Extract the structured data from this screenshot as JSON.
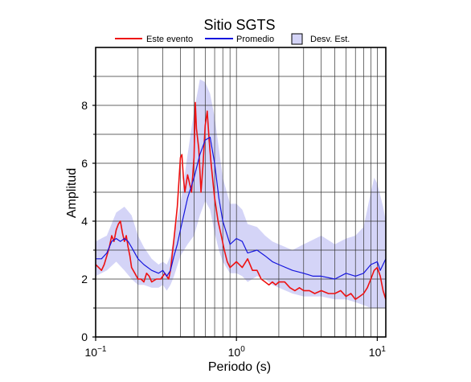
{
  "chart_data": {
    "type": "line",
    "title": "Sitio SGTS",
    "xlabel": "Periodo (s)",
    "ylabel": "Amplitud",
    "xscale": "log",
    "xlim": [
      0.1,
      11.5
    ],
    "ylim": [
      0,
      10
    ],
    "grid": true,
    "legend_position": "top",
    "x_ticks": [
      {
        "value": 0.1,
        "base": "10",
        "exp": "−1"
      },
      {
        "value": 1,
        "base": "10",
        "exp": "0"
      },
      {
        "value": 10,
        "base": "10",
        "exp": "1"
      }
    ],
    "y_ticks": [
      0,
      2,
      4,
      6,
      8
    ],
    "legend": [
      {
        "label": "Este evento",
        "kind": "line",
        "color": "#ee1111"
      },
      {
        "label": "Promedio",
        "kind": "line",
        "color": "#1515dd"
      },
      {
        "label": "Desv. Est.",
        "kind": "band",
        "color": "#d4d4f7"
      }
    ],
    "colors": {
      "event": "#ee1111",
      "mean": "#1515dd",
      "band": "#d4d4f7"
    },
    "series": [
      {
        "name": "Este evento",
        "color": "#ee1111",
        "points": [
          [
            0.1,
            2.5
          ],
          [
            0.105,
            2.4
          ],
          [
            0.11,
            2.3
          ],
          [
            0.115,
            2.5
          ],
          [
            0.12,
            2.8
          ],
          [
            0.125,
            3.1
          ],
          [
            0.13,
            3.5
          ],
          [
            0.135,
            3.3
          ],
          [
            0.14,
            3.7
          ],
          [
            0.145,
            3.9
          ],
          [
            0.15,
            4.0
          ],
          [
            0.155,
            3.6
          ],
          [
            0.16,
            3.3
          ],
          [
            0.165,
            3.5
          ],
          [
            0.17,
            3.1
          ],
          [
            0.175,
            2.8
          ],
          [
            0.18,
            2.4
          ],
          [
            0.19,
            2.2
          ],
          [
            0.2,
            2.0
          ],
          [
            0.21,
            2.0
          ],
          [
            0.22,
            1.9
          ],
          [
            0.23,
            2.2
          ],
          [
            0.24,
            2.1
          ],
          [
            0.25,
            1.9
          ],
          [
            0.27,
            2.0
          ],
          [
            0.29,
            2.0
          ],
          [
            0.31,
            2.2
          ],
          [
            0.33,
            2.0
          ],
          [
            0.34,
            2.3
          ],
          [
            0.36,
            3.4
          ],
          [
            0.38,
            4.5
          ],
          [
            0.4,
            6.2
          ],
          [
            0.41,
            6.3
          ],
          [
            0.42,
            5.5
          ],
          [
            0.43,
            5.0
          ],
          [
            0.45,
            5.6
          ],
          [
            0.47,
            5.2
          ],
          [
            0.48,
            5.0
          ],
          [
            0.5,
            6.2
          ],
          [
            0.51,
            8.1
          ],
          [
            0.52,
            7.2
          ],
          [
            0.54,
            6.5
          ],
          [
            0.56,
            5.0
          ],
          [
            0.58,
            6.0
          ],
          [
            0.6,
            7.3
          ],
          [
            0.62,
            7.8
          ],
          [
            0.64,
            6.8
          ],
          [
            0.66,
            6.0
          ],
          [
            0.7,
            4.8
          ],
          [
            0.74,
            4.0
          ],
          [
            0.78,
            3.5
          ],
          [
            0.82,
            3.0
          ],
          [
            0.86,
            2.6
          ],
          [
            0.9,
            2.4
          ],
          [
            0.95,
            2.5
          ],
          [
            1.0,
            2.6
          ],
          [
            1.1,
            2.4
          ],
          [
            1.2,
            2.7
          ],
          [
            1.3,
            2.3
          ],
          [
            1.4,
            2.3
          ],
          [
            1.5,
            2.0
          ],
          [
            1.6,
            1.9
          ],
          [
            1.7,
            1.8
          ],
          [
            1.8,
            1.9
          ],
          [
            1.9,
            1.8
          ],
          [
            2.0,
            1.9
          ],
          [
            2.2,
            1.9
          ],
          [
            2.4,
            1.7
          ],
          [
            2.6,
            1.6
          ],
          [
            2.8,
            1.7
          ],
          [
            3.0,
            1.6
          ],
          [
            3.3,
            1.6
          ],
          [
            3.6,
            1.5
          ],
          [
            4.0,
            1.6
          ],
          [
            4.5,
            1.5
          ],
          [
            5.0,
            1.5
          ],
          [
            5.5,
            1.6
          ],
          [
            6.0,
            1.4
          ],
          [
            6.5,
            1.5
          ],
          [
            7.0,
            1.3
          ],
          [
            7.5,
            1.4
          ],
          [
            8.0,
            1.5
          ],
          [
            8.5,
            1.7
          ],
          [
            9.0,
            2.0
          ],
          [
            9.5,
            2.3
          ],
          [
            10.0,
            2.4
          ],
          [
            10.5,
            2.1
          ],
          [
            11.0,
            1.6
          ],
          [
            11.5,
            1.3
          ]
        ]
      },
      {
        "name": "Promedio",
        "color": "#1515dd",
        "points": [
          [
            0.1,
            2.7
          ],
          [
            0.11,
            2.7
          ],
          [
            0.12,
            2.9
          ],
          [
            0.13,
            3.3
          ],
          [
            0.14,
            3.4
          ],
          [
            0.15,
            3.3
          ],
          [
            0.16,
            3.4
          ],
          [
            0.17,
            3.3
          ],
          [
            0.18,
            3.1
          ],
          [
            0.2,
            2.7
          ],
          [
            0.22,
            2.5
          ],
          [
            0.25,
            2.3
          ],
          [
            0.28,
            2.2
          ],
          [
            0.3,
            2.3
          ],
          [
            0.32,
            2.1
          ],
          [
            0.34,
            2.3
          ],
          [
            0.36,
            2.8
          ],
          [
            0.38,
            3.2
          ],
          [
            0.4,
            3.7
          ],
          [
            0.45,
            4.8
          ],
          [
            0.5,
            5.5
          ],
          [
            0.55,
            6.3
          ],
          [
            0.6,
            6.8
          ],
          [
            0.65,
            6.9
          ],
          [
            0.7,
            6.0
          ],
          [
            0.75,
            4.8
          ],
          [
            0.8,
            4.0
          ],
          [
            0.9,
            3.2
          ],
          [
            1.0,
            3.4
          ],
          [
            1.1,
            3.3
          ],
          [
            1.2,
            2.9
          ],
          [
            1.4,
            3.0
          ],
          [
            1.6,
            2.8
          ],
          [
            1.8,
            2.6
          ],
          [
            2.0,
            2.5
          ],
          [
            2.5,
            2.3
          ],
          [
            3.0,
            2.2
          ],
          [
            3.5,
            2.1
          ],
          [
            4.0,
            2.1
          ],
          [
            5.0,
            2.0
          ],
          [
            6.0,
            2.2
          ],
          [
            7.0,
            2.1
          ],
          [
            8.0,
            2.2
          ],
          [
            9.0,
            2.5
          ],
          [
            10.0,
            2.6
          ],
          [
            10.5,
            2.3
          ],
          [
            11.5,
            2.7
          ]
        ]
      }
    ],
    "band": {
      "name": "Desv. Est.",
      "color": "#d4d4f7",
      "upper": [
        [
          0.1,
          3.3
        ],
        [
          0.12,
          3.5
        ],
        [
          0.14,
          4.3
        ],
        [
          0.16,
          4.5
        ],
        [
          0.18,
          4.2
        ],
        [
          0.2,
          3.5
        ],
        [
          0.22,
          3.1
        ],
        [
          0.25,
          2.7
        ],
        [
          0.28,
          2.5
        ],
        [
          0.3,
          2.6
        ],
        [
          0.32,
          2.5
        ],
        [
          0.34,
          2.8
        ],
        [
          0.36,
          3.5
        ],
        [
          0.4,
          4.6
        ],
        [
          0.45,
          6.3
        ],
        [
          0.5,
          7.8
        ],
        [
          0.55,
          8.9
        ],
        [
          0.6,
          8.8
        ],
        [
          0.65,
          8.4
        ],
        [
          0.7,
          7.6
        ],
        [
          0.75,
          6.5
        ],
        [
          0.8,
          5.5
        ],
        [
          0.9,
          4.6
        ],
        [
          1.0,
          4.6
        ],
        [
          1.1,
          4.4
        ],
        [
          1.2,
          3.9
        ],
        [
          1.4,
          3.8
        ],
        [
          1.6,
          3.5
        ],
        [
          1.8,
          3.3
        ],
        [
          2.0,
          3.2
        ],
        [
          2.5,
          3.0
        ],
        [
          3.0,
          3.2
        ],
        [
          4.0,
          3.5
        ],
        [
          5.0,
          3.2
        ],
        [
          6.0,
          3.4
        ],
        [
          7.0,
          3.5
        ],
        [
          8.0,
          3.8
        ],
        [
          9.0,
          5.0
        ],
        [
          9.5,
          5.5
        ],
        [
          10.0,
          5.3
        ],
        [
          11.0,
          4.5
        ],
        [
          11.5,
          4.0
        ]
      ],
      "lower": [
        [
          0.1,
          2.1
        ],
        [
          0.12,
          2.3
        ],
        [
          0.14,
          2.6
        ],
        [
          0.16,
          2.3
        ],
        [
          0.18,
          2.0
        ],
        [
          0.2,
          1.8
        ],
        [
          0.22,
          1.8
        ],
        [
          0.25,
          1.7
        ],
        [
          0.28,
          1.7
        ],
        [
          0.3,
          1.8
        ],
        [
          0.32,
          1.6
        ],
        [
          0.34,
          1.8
        ],
        [
          0.36,
          2.1
        ],
        [
          0.4,
          2.8
        ],
        [
          0.45,
          3.2
        ],
        [
          0.5,
          3.5
        ],
        [
          0.55,
          4.2
        ],
        [
          0.6,
          4.7
        ],
        [
          0.65,
          4.4
        ],
        [
          0.7,
          3.6
        ],
        [
          0.75,
          3.0
        ],
        [
          0.8,
          2.6
        ],
        [
          0.9,
          2.2
        ],
        [
          1.0,
          2.2
        ],
        [
          1.1,
          2.1
        ],
        [
          1.2,
          1.9
        ],
        [
          1.4,
          2.1
        ],
        [
          1.6,
          2.0
        ],
        [
          1.8,
          1.8
        ],
        [
          2.0,
          1.7
        ],
        [
          2.5,
          1.5
        ],
        [
          3.0,
          1.4
        ],
        [
          4.0,
          1.4
        ],
        [
          5.0,
          1.3
        ],
        [
          6.0,
          1.3
        ],
        [
          7.0,
          1.2
        ],
        [
          8.0,
          1.1
        ],
        [
          9.0,
          1.0
        ],
        [
          10.0,
          1.0
        ],
        [
          11.0,
          1.0
        ],
        [
          11.5,
          1.0
        ]
      ]
    }
  }
}
